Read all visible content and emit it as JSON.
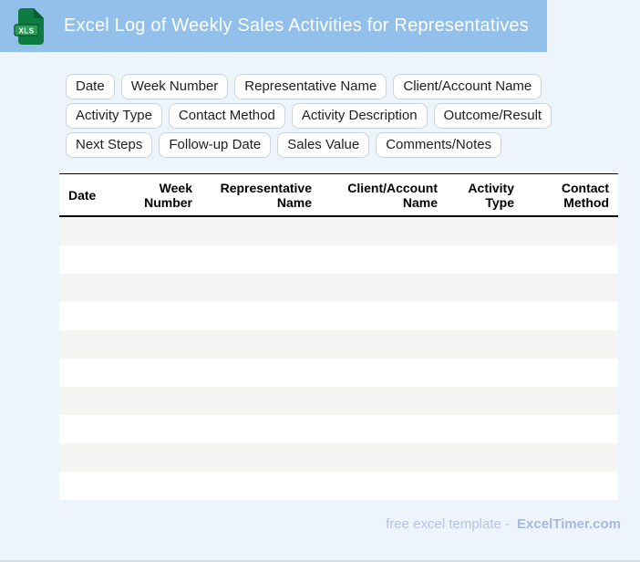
{
  "header": {
    "title": "Excel Log of Weekly Sales Activities for Representatives",
    "file_icon_label": "XLS"
  },
  "chips": [
    "Date",
    "Week Number",
    "Representative Name",
    "Client/Account Name",
    "Activity Type",
    "Contact Method",
    "Activity Description",
    "Outcome/Result",
    "Next Steps",
    "Follow-up Date",
    "Sales Value",
    "Comments/Notes"
  ],
  "table": {
    "columns": [
      "Date",
      "Week Number",
      "Representative Name",
      "Client/Account Name",
      "Activity Type",
      "Contact Method"
    ],
    "empty_row_count": 10
  },
  "footer": {
    "text": "free excel template -",
    "brand": "ExcelTimer.com"
  },
  "colors": {
    "header-bg": "#92c0ea",
    "page-bg": "#edf4fc",
    "row-stripe": "#f5f5f3",
    "footer-text": "#b7c2e5",
    "footer-brand": "#a9b7e2",
    "icon-green": "#0e7c42",
    "icon-green-dark": "#0a5c31",
    "icon-green-band": "#2f9c59"
  }
}
